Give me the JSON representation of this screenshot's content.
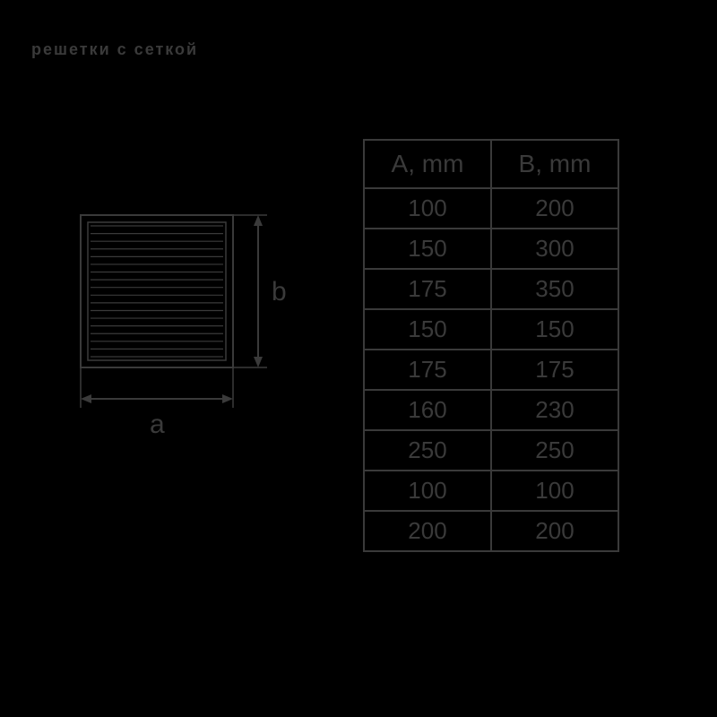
{
  "title": "решетки с сеткой",
  "colors": {
    "background": "#000000",
    "stroke": "#3a3a3a",
    "text": "#3a3a3a"
  },
  "diagram": {
    "type": "technical-drawing",
    "shape": "square-grille",
    "label_width": "a",
    "label_height": "b",
    "louver_count": 18,
    "stroke_width": 2
  },
  "table": {
    "type": "table",
    "columns": [
      "A,  mm",
      "B,  mm"
    ],
    "rows": [
      [
        "100",
        "200"
      ],
      [
        "150",
        "300"
      ],
      [
        "175",
        "350"
      ],
      [
        "150",
        "150"
      ],
      [
        "175",
        "175"
      ],
      [
        "160",
        "230"
      ],
      [
        "250",
        "250"
      ],
      [
        "100",
        "100"
      ],
      [
        "200",
        "200"
      ]
    ],
    "border_color": "#3a3a3a",
    "cell_fontsize": 26,
    "header_fontsize": 28
  }
}
